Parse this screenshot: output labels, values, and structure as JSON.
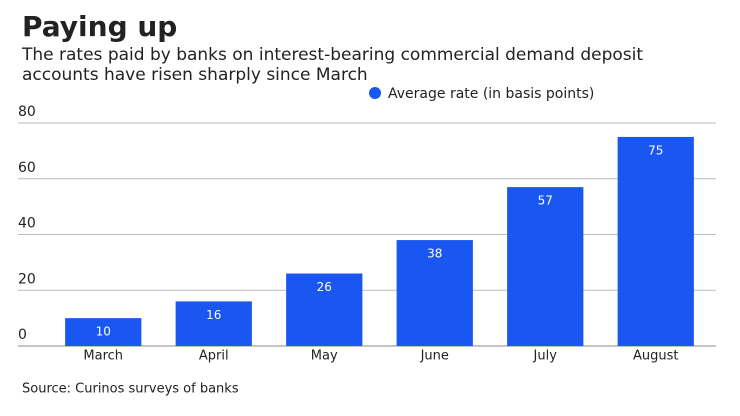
{
  "chart_data": {
    "type": "bar",
    "title": "Paying up",
    "subtitle": "The rates paid by banks on interest-bearing commercial demand deposit accounts have risen sharply since March",
    "source": "Source: Curinos surveys of banks",
    "categories": [
      "March",
      "April",
      "May",
      "June",
      "July",
      "August"
    ],
    "series": [
      {
        "name": "Average rate (in basis points)",
        "color": "#1957f0",
        "values": [
          10,
          16,
          26,
          38,
          57,
          75
        ]
      }
    ],
    "ylim": [
      0,
      80
    ],
    "yticks": [
      0,
      20,
      40,
      60,
      80
    ],
    "grid": true,
    "legend": "top"
  }
}
